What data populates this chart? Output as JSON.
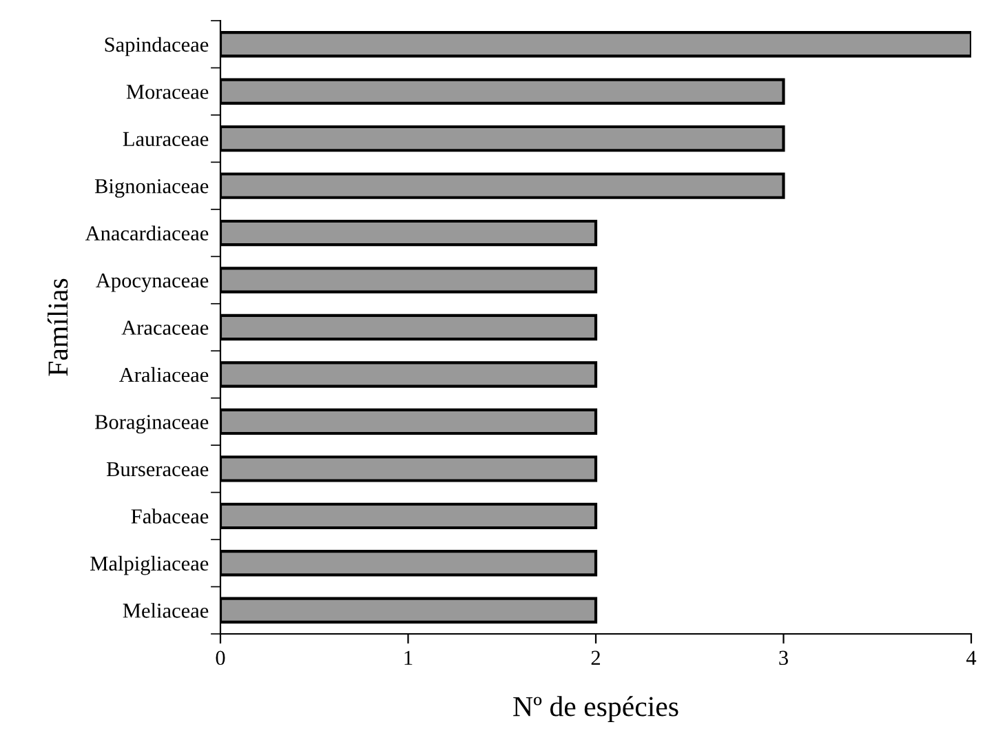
{
  "chart_data": {
    "type": "bar",
    "orientation": "horizontal",
    "xlabel": "Nº de espécies",
    "ylabel": "Famílias",
    "categories": [
      "Sapindaceae",
      "Moraceae",
      "Lauraceae",
      "Bignoniaceae",
      "Anacardiaceae",
      "Apocynaceae",
      "Aracaceae",
      "Araliaceae",
      "Boraginaceae",
      "Burseraceae",
      "Fabaceae",
      "Malpigliaceae",
      "Meliaceae"
    ],
    "values": [
      4,
      3,
      3,
      3,
      2,
      2,
      2,
      2,
      2,
      2,
      2,
      2,
      2
    ],
    "color": "#999999",
    "xlim": [
      0,
      4
    ],
    "xticks": [
      0,
      1,
      2,
      3,
      4
    ],
    "grid": false,
    "legend": false
  }
}
